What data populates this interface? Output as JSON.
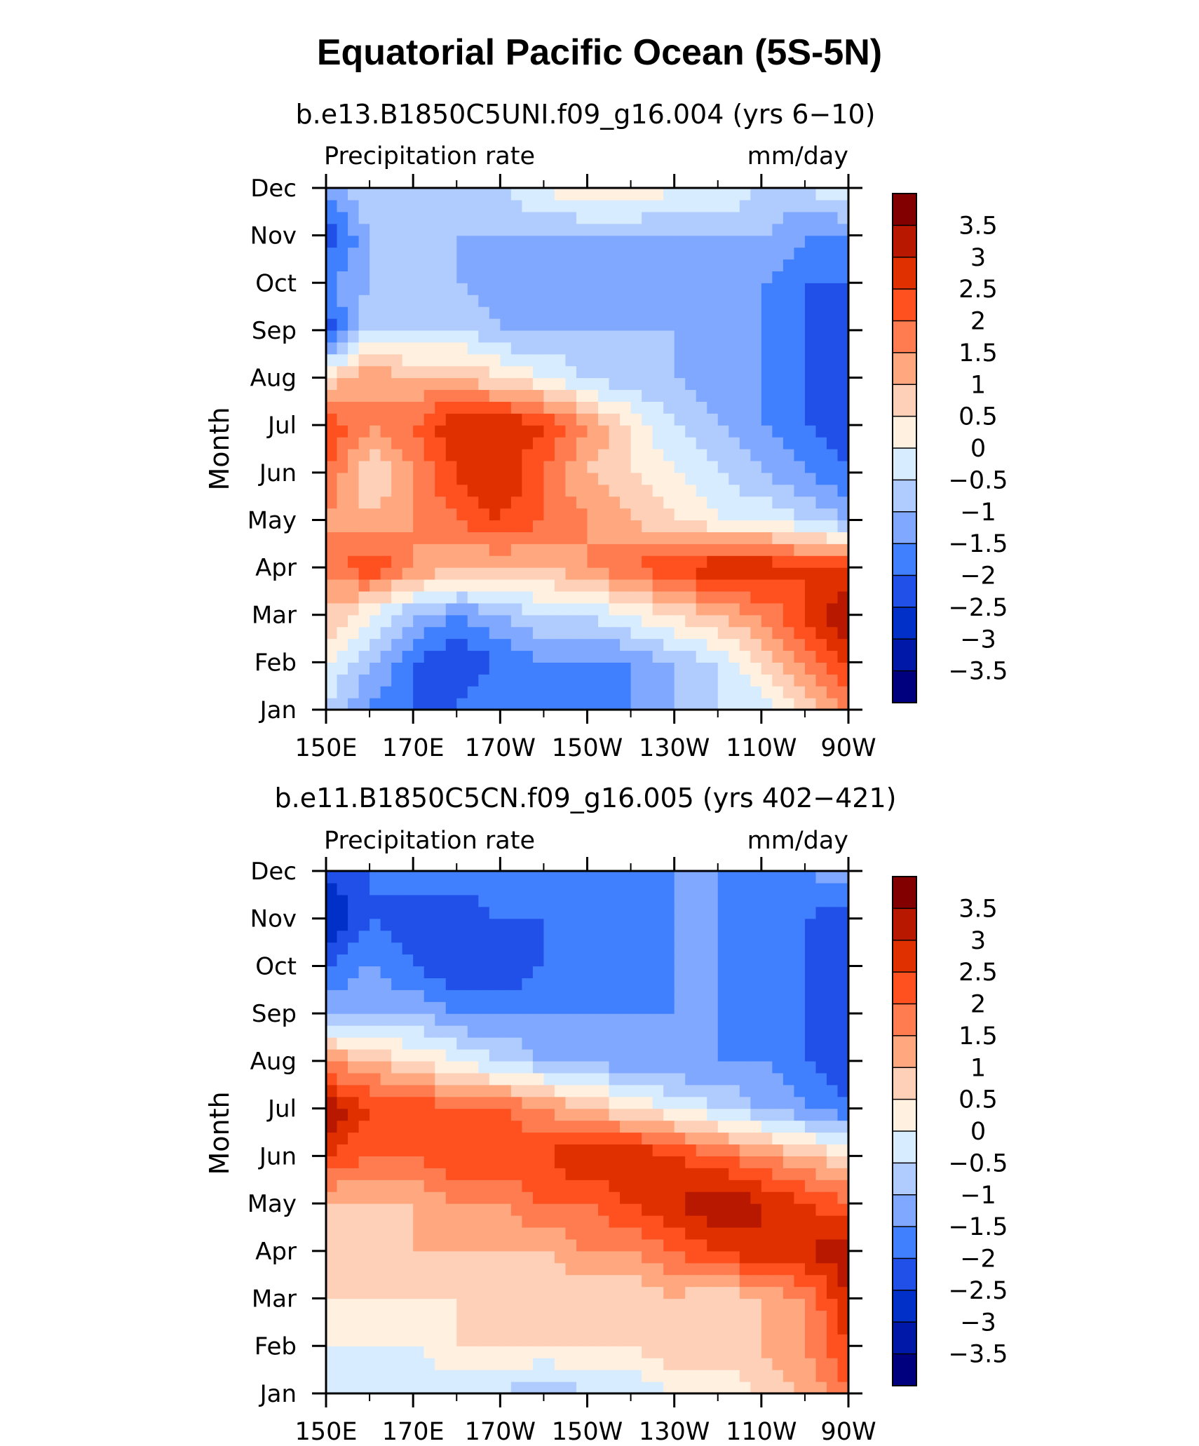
{
  "title": "Equatorial Pacific Ocean (5S-5N)",
  "colors": [
    "#00007f",
    "#0018a8",
    "#0030c8",
    "#2050e8",
    "#4080ff",
    "#80a8ff",
    "#b0ccff",
    "#d8ecff",
    "#fff0e0",
    "#ffd0b8",
    "#ffa880",
    "#ff7c50",
    "#ff5020",
    "#e03000",
    "#b81800",
    "#820000"
  ],
  "contour_levels": [
    "3.5",
    "3",
    "2.5",
    "2",
    "1.5",
    "1",
    "0.5",
    "0",
    "−0.5",
    "−1",
    "−1.5",
    "−2",
    "−2.5",
    "−3",
    "−3.5"
  ],
  "chart_data": [
    {
      "type": "heatmap",
      "subtitle": "b.e13.B1850C5UNI.f09_g16.004 (yrs 6−10)",
      "left_label": "Precipitation rate",
      "right_label": "mm/day",
      "ylabel": "Month",
      "x_ticks": [
        "150E",
        "170E",
        "170W",
        "150W",
        "130W",
        "110W",
        "90W"
      ],
      "y_ticks": [
        "Jan",
        "Feb",
        "Mar",
        "Apr",
        "May",
        "Jun",
        "Jul",
        "Aug",
        "Sep",
        "Oct",
        "Nov",
        "Dec"
      ],
      "z": [
        [
          -0.5,
          -1.5,
          -2.0,
          -2.0,
          -1.5,
          -2.0,
          -2.0,
          -1.5,
          -1.0,
          -0.5,
          -0.5,
          0.5,
          1.5
        ],
        [
          0.0,
          -1.0,
          -2.0,
          -2.5,
          -2.0,
          -1.5,
          -1.5,
          -1.5,
          -1.0,
          -0.5,
          0.5,
          1.5,
          2.5
        ],
        [
          1.0,
          0.0,
          -1.0,
          -1.5,
          -1.0,
          -0.5,
          -0.5,
          0.0,
          0.5,
          1.0,
          1.5,
          2.5,
          3.5
        ],
        [
          1.5,
          2.5,
          1.5,
          1.0,
          1.0,
          1.0,
          1.5,
          2.0,
          2.5,
          3.0,
          3.0,
          2.5,
          2.5
        ],
        [
          1.5,
          1.0,
          1.5,
          2.0,
          2.5,
          2.0,
          1.5,
          1.0,
          0.5,
          0.0,
          0.0,
          -0.5,
          -1.0
        ],
        [
          2.0,
          0.5,
          1.5,
          2.5,
          3.0,
          2.0,
          1.0,
          0.5,
          0.0,
          -0.5,
          -1.0,
          -1.5,
          -2.0
        ],
        [
          2.5,
          1.5,
          2.0,
          3.0,
          3.0,
          2.5,
          1.5,
          0.5,
          -0.5,
          -1.0,
          -1.5,
          -2.0,
          -2.5
        ],
        [
          0.5,
          1.5,
          1.0,
          1.0,
          0.5,
          0.0,
          -0.5,
          -1.0,
          -1.0,
          -1.5,
          -1.5,
          -2.0,
          -2.5
        ],
        [
          -2.5,
          -0.5,
          -0.5,
          -0.5,
          -1.0,
          -1.0,
          -1.0,
          -1.0,
          -1.0,
          -1.5,
          -1.5,
          -2.0,
          -2.5
        ],
        [
          -1.5,
          -1.0,
          -0.5,
          -1.0,
          -1.5,
          -1.5,
          -1.5,
          -1.5,
          -1.5,
          -1.5,
          -1.5,
          -2.0,
          -2.0
        ],
        [
          -2.5,
          -1.0,
          -0.5,
          -1.0,
          -1.0,
          -1.0,
          -1.0,
          -1.0,
          -1.0,
          -1.0,
          -1.0,
          -1.5,
          -1.5
        ],
        [
          -1.5,
          -0.5,
          -0.5,
          -0.5,
          -0.5,
          0.0,
          0.5,
          0.5,
          0.0,
          0.0,
          -0.5,
          -0.5,
          0.0
        ]
      ]
    },
    {
      "type": "heatmap",
      "subtitle": "b.e11.B1850C5CN.f09_g16.005 (yrs 402−421)",
      "left_label": "Precipitation rate",
      "right_label": "mm/day",
      "ylabel": "Month",
      "x_ticks": [
        "150E",
        "170E",
        "170W",
        "150W",
        "130W",
        "110W",
        "90W"
      ],
      "y_ticks": [
        "Jan",
        "Feb",
        "Mar",
        "Apr",
        "May",
        "Jun",
        "Jul",
        "Aug",
        "Sep",
        "Oct",
        "Nov",
        "Dec"
      ],
      "z": [
        [
          -0.5,
          -0.5,
          -0.5,
          -0.5,
          -0.5,
          -1.0,
          -0.5,
          -0.5,
          0.0,
          0.0,
          0.5,
          1.0,
          2.0
        ],
        [
          0.0,
          0.0,
          0.0,
          0.5,
          0.5,
          0.5,
          0.5,
          0.5,
          1.0,
          1.0,
          1.0,
          1.5,
          2.5
        ],
        [
          0.5,
          0.5,
          0.5,
          0.5,
          0.5,
          0.5,
          0.5,
          0.5,
          1.0,
          0.5,
          1.0,
          1.5,
          3.0
        ],
        [
          1.0,
          0.5,
          1.0,
          1.0,
          1.0,
          1.0,
          1.5,
          1.5,
          2.0,
          2.5,
          3.0,
          3.0,
          3.5
        ],
        [
          1.0,
          1.0,
          1.0,
          1.5,
          1.5,
          2.0,
          2.0,
          2.5,
          3.0,
          3.5,
          3.0,
          2.5,
          2.0
        ],
        [
          2.5,
          2.0,
          2.0,
          2.5,
          2.5,
          2.5,
          3.0,
          3.0,
          2.5,
          2.0,
          1.5,
          1.0,
          0.5
        ],
        [
          3.5,
          2.5,
          2.5,
          2.0,
          2.0,
          1.5,
          1.0,
          0.5,
          0.0,
          -0.5,
          -1.0,
          -1.5,
          -2.0
        ],
        [
          1.5,
          1.0,
          0.5,
          0.0,
          -0.5,
          -1.0,
          -1.0,
          -1.5,
          -1.5,
          -1.5,
          -1.5,
          -2.0,
          -2.5
        ],
        [
          -1.0,
          -1.0,
          -1.0,
          -1.5,
          -1.5,
          -1.5,
          -1.5,
          -1.5,
          -1.5,
          -1.5,
          -2.0,
          -2.0,
          -2.5
        ],
        [
          -2.0,
          -1.5,
          -2.0,
          -2.5,
          -2.5,
          -2.0,
          -2.0,
          -2.0,
          -1.5,
          -1.5,
          -2.0,
          -2.0,
          -2.5
        ],
        [
          -3.0,
          -2.0,
          -2.5,
          -2.5,
          -2.0,
          -2.0,
          -2.0,
          -2.0,
          -1.5,
          -1.5,
          -2.0,
          -2.0,
          -2.5
        ],
        [
          -2.5,
          -2.0,
          -1.5,
          -1.5,
          -1.5,
          -1.5,
          -1.5,
          -1.5,
          -1.5,
          -1.5,
          -1.5,
          -1.5,
          -1.0
        ]
      ]
    }
  ]
}
